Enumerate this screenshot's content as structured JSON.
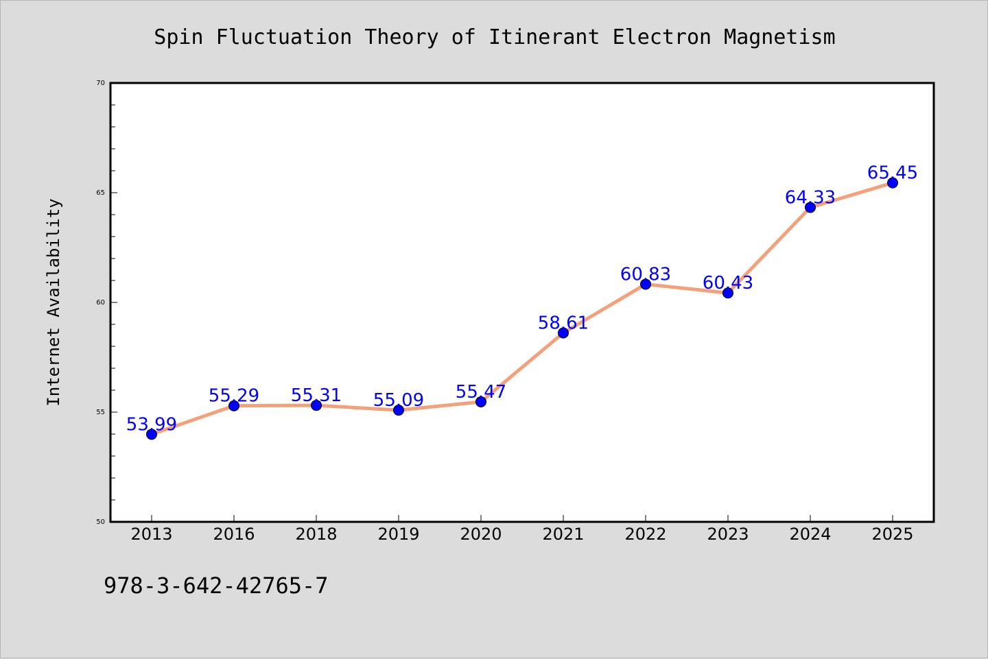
{
  "chart_data": {
    "type": "line",
    "title": "Spin Fluctuation Theory of Itinerant Electron Magnetism",
    "xlabel": "",
    "ylabel": "Internet Availability",
    "categories": [
      "2013",
      "2016",
      "2018",
      "2019",
      "2020",
      "2021",
      "2022",
      "2023",
      "2024",
      "2025"
    ],
    "series": [
      {
        "values": [
          53.99,
          55.29,
          55.31,
          55.09,
          55.47,
          58.61,
          60.83,
          60.43,
          64.33,
          65.45
        ],
        "labels": [
          "53.99",
          "55.29",
          "55.31",
          "55.09",
          "55.47",
          "58.61",
          "60.83",
          "60.43",
          "64.33",
          "65.45"
        ],
        "line_color": "#f4a07a",
        "marker_color": "#0000ff",
        "label_color": "#0000ff"
      }
    ],
    "ylim": [
      50,
      70
    ],
    "yticks": [
      "50",
      "55",
      "60",
      "65",
      "70"
    ],
    "grid": false,
    "legend": "none"
  },
  "footer": {
    "isbn": "978-3-642-42765-7"
  },
  "colors": {
    "background": "#dcdcdc",
    "plot_area": "#ffffff",
    "axis": "#000000"
  }
}
